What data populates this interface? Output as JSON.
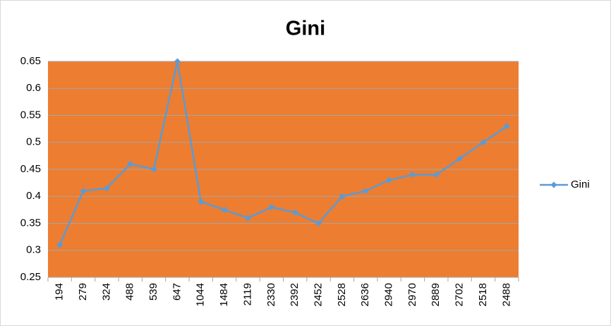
{
  "chart_data": {
    "type": "line",
    "title": "Gini",
    "categories": [
      "194",
      "279",
      "324",
      "488",
      "539",
      "647",
      "1044",
      "1484",
      "2119",
      "2330",
      "2392",
      "2452",
      "2528",
      "2636",
      "2940",
      "2970",
      "2889",
      "2702",
      "2518",
      "2488"
    ],
    "series": [
      {
        "name": "Gini",
        "color": "#5b9bd5",
        "values": [
          0.31,
          0.41,
          0.415,
          0.46,
          0.45,
          0.65,
          0.39,
          0.375,
          0.36,
          0.38,
          0.37,
          0.35,
          0.4,
          0.41,
          0.43,
          0.44,
          0.44,
          0.47,
          0.5,
          0.53
        ]
      }
    ],
    "ylim": [
      0.25,
      0.65
    ],
    "yticks": [
      0.25,
      0.3,
      0.35,
      0.4,
      0.45,
      0.5,
      0.55,
      0.6,
      0.65
    ],
    "grid": true,
    "legend": "right",
    "plot_background": "#ed7d31"
  }
}
